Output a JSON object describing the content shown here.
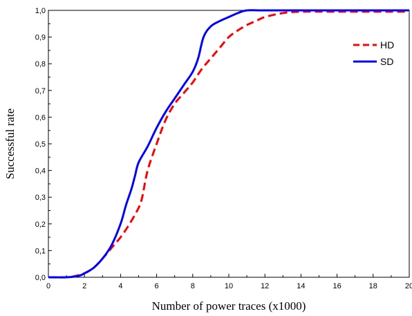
{
  "chart_data": {
    "type": "line",
    "title": "",
    "xlabel": "Number of power traces (x1000)",
    "ylabel": "Successful rate",
    "xlim": [
      0,
      20
    ],
    "ylim": [
      0,
      1.0
    ],
    "x_ticks": [
      "0",
      "2",
      "4",
      "6",
      "8",
      "10",
      "12",
      "14",
      "16",
      "18",
      "20"
    ],
    "y_ticks": [
      "0,0",
      "0,1",
      "0,2",
      "0,3",
      "0,4",
      "0,5",
      "0,6",
      "0,7",
      "0,8",
      "0,9",
      "1,0"
    ],
    "grid": false,
    "legend_position": "top-right",
    "series": [
      {
        "name": "HD",
        "color": "#ff0000",
        "style": "dashed",
        "x": [
          0,
          1,
          1.5,
          2,
          2.5,
          3,
          3.5,
          4,
          4.5,
          5,
          5.2,
          5.5,
          6,
          6.5,
          7,
          7.5,
          8,
          8.5,
          9,
          9.5,
          10,
          10.5,
          11,
          11.5,
          12,
          13,
          14,
          16,
          18,
          20
        ],
        "y": [
          0,
          0,
          0.005,
          0.015,
          0.035,
          0.07,
          0.11,
          0.15,
          0.2,
          0.26,
          0.3,
          0.4,
          0.5,
          0.59,
          0.65,
          0.69,
          0.73,
          0.78,
          0.82,
          0.86,
          0.9,
          0.925,
          0.945,
          0.96,
          0.975,
          0.99,
          0.995,
          0.995,
          0.995,
          0.995
        ]
      },
      {
        "name": "SD",
        "color": "#0000ff",
        "style": "solid",
        "x": [
          0,
          1,
          1.5,
          1.8,
          2,
          2.5,
          3,
          3.5,
          4,
          4.3,
          4.6,
          4.8,
          5,
          5.5,
          6,
          6.5,
          7,
          7.5,
          8,
          8.3,
          8.6,
          9,
          9.5,
          10,
          10.5,
          11,
          12,
          14,
          16,
          18,
          20
        ],
        "y": [
          0,
          0,
          0.003,
          0.008,
          0.015,
          0.035,
          0.07,
          0.12,
          0.2,
          0.27,
          0.33,
          0.38,
          0.43,
          0.49,
          0.56,
          0.62,
          0.67,
          0.72,
          0.77,
          0.82,
          0.9,
          0.94,
          0.96,
          0.975,
          0.99,
          1.0,
          1.0,
          1.0,
          1.0,
          1.0,
          1.0
        ]
      }
    ]
  }
}
